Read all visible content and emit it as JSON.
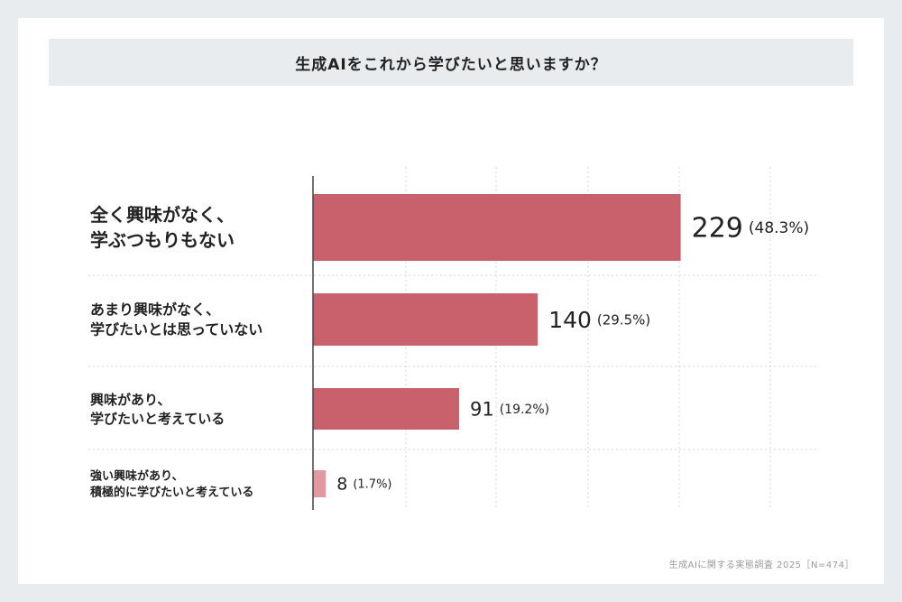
{
  "chart_data": {
    "type": "bar",
    "orientation": "horizontal",
    "title": "生成AIをこれから学びたいと思いますか？",
    "categories": [
      [
        "全く興味がなく、",
        "学ぶつもりもない"
      ],
      [
        "あまり興味がなく、",
        "学びたいとは思っていない"
      ],
      [
        "興味があり、",
        "学びたいと考えている"
      ],
      [
        "強い興味があり、",
        "積極的に学びたいと考えている"
      ]
    ],
    "values": [
      229,
      140,
      91,
      8
    ],
    "percent_labels": [
      "(48.3%)",
      "(29.5%)",
      "(19.2%)",
      "(1.7%)"
    ],
    "xlim": [
      0,
      250
    ],
    "grid": true,
    "colors": {
      "main": "#c9616c",
      "minor": "#e3979e",
      "axis": "#444444",
      "grid": "#d7d7d7"
    }
  },
  "footnote": "生成AIに関する実態調査 2025［N=474］"
}
